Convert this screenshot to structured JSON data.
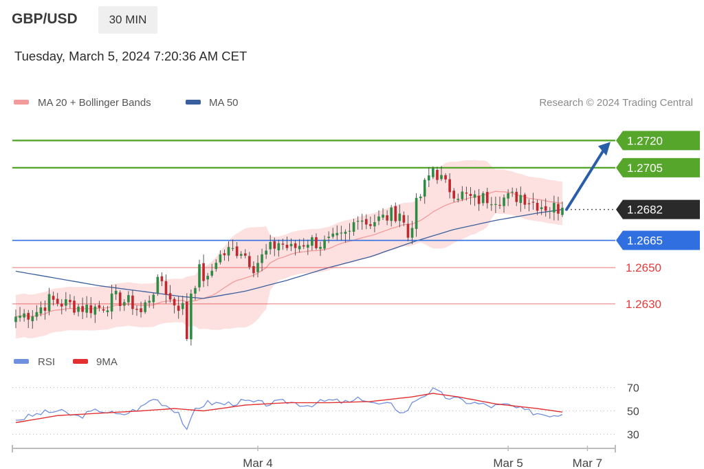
{
  "header": {
    "symbol": "GBP/USD",
    "timeframe": "30 MIN",
    "timestamp": "Tuesday, March 5, 2024 7:20:36 AM CET"
  },
  "legend": {
    "ma20": "MA 20 + Bollinger Bands",
    "ma50": "MA 50",
    "credit": "Research © 2024 Trading Central",
    "rsi": "RSI",
    "rsi_ma": "9MA"
  },
  "colors": {
    "ma20": "#f39a9a",
    "band": "#fde0e0",
    "ma50": "#3a5f9e",
    "bull": "#2e8b43",
    "bear": "#c0282d",
    "resistance": "#55a62a",
    "pivot": "#2f6fe0",
    "support": "#e33b3b",
    "current": "#2a2a2a",
    "rsi": "#6f8fe0",
    "rsi_ma": "#e23030",
    "arrow": "#2a5ea8"
  },
  "chart_data": {
    "type": "candlestick",
    "timeframe": "30 MIN",
    "ylim": [
      1.2608,
      1.2733
    ],
    "x_ticks": [
      {
        "label": "Mar 4",
        "index": 58
      },
      {
        "label": "Mar 5",
        "index": 118
      },
      {
        "label": "Mar 7",
        "index": 137
      }
    ],
    "levels": [
      {
        "value": 1.272,
        "label": "1.2720",
        "kind": "resistance"
      },
      {
        "value": 1.2705,
        "label": "1.2705",
        "kind": "resistance"
      },
      {
        "value": 1.2682,
        "label": "1.2682",
        "kind": "current"
      },
      {
        "value": 1.2665,
        "label": "1.2665",
        "kind": "pivot"
      },
      {
        "value": 1.265,
        "label": "1.2650",
        "kind": "support"
      },
      {
        "value": 1.263,
        "label": "1.2630",
        "kind": "support"
      }
    ],
    "current_price": 1.2682,
    "projection": {
      "from": 1.2682,
      "to": 1.272
    },
    "waypoints": [
      [
        0,
        1.2623
      ],
      [
        5,
        1.2626
      ],
      [
        8,
        1.2632
      ],
      [
        12,
        1.263
      ],
      [
        16,
        1.2628
      ],
      [
        20,
        1.2628
      ],
      [
        24,
        1.2633
      ],
      [
        28,
        1.263
      ],
      [
        30,
        1.2625
      ],
      [
        33,
        1.2638
      ],
      [
        35,
        1.2643
      ],
      [
        37,
        1.2632
      ],
      [
        40,
        1.2628
      ],
      [
        41,
        1.2612
      ],
      [
        42,
        1.2637
      ],
      [
        44,
        1.2648
      ],
      [
        46,
        1.2642
      ],
      [
        48,
        1.2655
      ],
      [
        51,
        1.2659
      ],
      [
        54,
        1.266
      ],
      [
        57,
        1.2651
      ],
      [
        60,
        1.2658
      ],
      [
        63,
        1.2664
      ],
      [
        66,
        1.266
      ],
      [
        70,
        1.2665
      ],
      [
        74,
        1.2663
      ],
      [
        78,
        1.2666
      ],
      [
        80,
        1.2669
      ],
      [
        82,
        1.268
      ],
      [
        84,
        1.2675
      ],
      [
        88,
        1.2677
      ],
      [
        92,
        1.2681
      ],
      [
        94,
        1.2667
      ],
      [
        96,
        1.2684
      ],
      [
        98,
        1.2695
      ],
      [
        100,
        1.2705
      ],
      [
        103,
        1.2695
      ],
      [
        106,
        1.2691
      ],
      [
        110,
        1.2687
      ],
      [
        114,
        1.2689
      ],
      [
        118,
        1.2688
      ],
      [
        121,
        1.269
      ],
      [
        124,
        1.2686
      ],
      [
        128,
        1.2683
      ],
      [
        131,
        1.2683
      ]
    ],
    "ma50_waypoints": [
      [
        0,
        1.2648
      ],
      [
        10,
        1.2644
      ],
      [
        20,
        1.264
      ],
      [
        30,
        1.2637
      ],
      [
        40,
        1.2634
      ],
      [
        45,
        1.2633
      ],
      [
        55,
        1.2637
      ],
      [
        65,
        1.2643
      ],
      [
        75,
        1.265
      ],
      [
        85,
        1.2656
      ],
      [
        95,
        1.2664
      ],
      [
        105,
        1.2671
      ],
      [
        115,
        1.2676
      ],
      [
        125,
        1.268
      ],
      [
        131,
        1.2682
      ]
    ],
    "rsi": {
      "levels": [
        70,
        50,
        30
      ],
      "ylim": [
        25,
        75
      ],
      "rsi_waypoints": [
        [
          0,
          42
        ],
        [
          6,
          48
        ],
        [
          10,
          50
        ],
        [
          15,
          45
        ],
        [
          20,
          51
        ],
        [
          25,
          46
        ],
        [
          30,
          53
        ],
        [
          33,
          61
        ],
        [
          36,
          55
        ],
        [
          39,
          49
        ],
        [
          41,
          32
        ],
        [
          43,
          52
        ],
        [
          46,
          57
        ],
        [
          50,
          56
        ],
        [
          55,
          58
        ],
        [
          60,
          56
        ],
        [
          65,
          58
        ],
        [
          70,
          55
        ],
        [
          75,
          59
        ],
        [
          80,
          57
        ],
        [
          83,
          61
        ],
        [
          86,
          56
        ],
        [
          90,
          55
        ],
        [
          93,
          48
        ],
        [
          96,
          60
        ],
        [
          100,
          68
        ],
        [
          103,
          62
        ],
        [
          108,
          58
        ],
        [
          114,
          54
        ],
        [
          118,
          55
        ],
        [
          122,
          50
        ],
        [
          127,
          47
        ],
        [
          131,
          47
        ]
      ],
      "ma_waypoints": [
        [
          0,
          40
        ],
        [
          10,
          46
        ],
        [
          20,
          48
        ],
        [
          30,
          50
        ],
        [
          38,
          52
        ],
        [
          45,
          50
        ],
        [
          55,
          55
        ],
        [
          65,
          57
        ],
        [
          75,
          57
        ],
        [
          85,
          58
        ],
        [
          95,
          62
        ],
        [
          100,
          65
        ],
        [
          106,
          62
        ],
        [
          115,
          56
        ],
        [
          125,
          52
        ],
        [
          131,
          49
        ]
      ]
    }
  }
}
